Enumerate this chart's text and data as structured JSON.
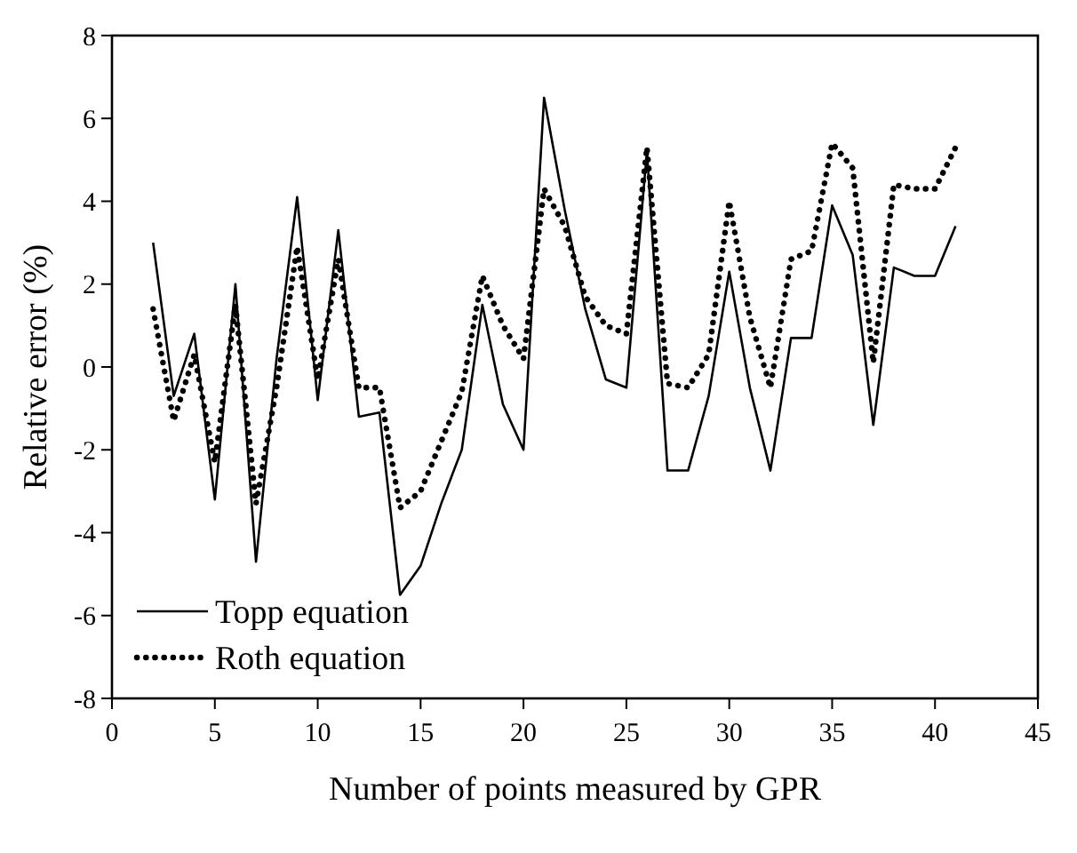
{
  "chart_data": {
    "type": "line",
    "xlabel": "Number of points measured by GPR",
    "ylabel": "Relative error (%)",
    "x": [
      2,
      3,
      4,
      5,
      6,
      7,
      8,
      9,
      10,
      11,
      12,
      13,
      14,
      15,
      16,
      17,
      18,
      19,
      20,
      21,
      22,
      23,
      24,
      25,
      26,
      27,
      28,
      29,
      30,
      31,
      32,
      33,
      34,
      35,
      36,
      37,
      38,
      39,
      40,
      41
    ],
    "series": [
      {
        "name": "Topp equation",
        "color": "#000000",
        "line_style": "solid",
        "values": [
          3.0,
          -0.7,
          0.8,
          -3.2,
          2.0,
          -4.7,
          0.2,
          4.1,
          -0.8,
          3.3,
          -1.2,
          -1.1,
          -5.5,
          -4.8,
          -3.3,
          -2.0,
          1.5,
          -0.9,
          -2.0,
          6.5,
          3.8,
          1.4,
          -0.3,
          -0.5,
          5.2,
          -2.5,
          -2.5,
          -0.7,
          2.3,
          -0.5,
          -2.5,
          0.7,
          0.7,
          3.9,
          2.7,
          -1.4,
          2.4,
          2.2,
          2.2,
          3.4
        ]
      },
      {
        "name": "Roth equation",
        "color": "#000000",
        "line_style": "dotted",
        "values": [
          1.4,
          -1.3,
          0.3,
          -2.3,
          1.5,
          -3.3,
          -0.5,
          2.9,
          -0.3,
          2.6,
          -0.5,
          -0.5,
          -3.4,
          -3.0,
          -1.8,
          -0.6,
          2.2,
          1.0,
          0.2,
          4.3,
          3.4,
          1.7,
          1.0,
          0.8,
          5.3,
          -0.4,
          -0.5,
          0.3,
          4.0,
          1.2,
          -0.5,
          2.6,
          2.8,
          5.4,
          4.8,
          0.1,
          4.4,
          4.3,
          4.3,
          5.3
        ]
      }
    ],
    "xlim": [
      0,
      45
    ],
    "xticks": [
      0,
      5,
      10,
      15,
      20,
      25,
      30,
      35,
      40,
      45
    ],
    "ylim": [
      -8,
      8
    ],
    "yticks": [
      -8,
      -6,
      -4,
      -2,
      0,
      2,
      4,
      6,
      8
    ],
    "legend": "bottom left",
    "grid": false
  }
}
